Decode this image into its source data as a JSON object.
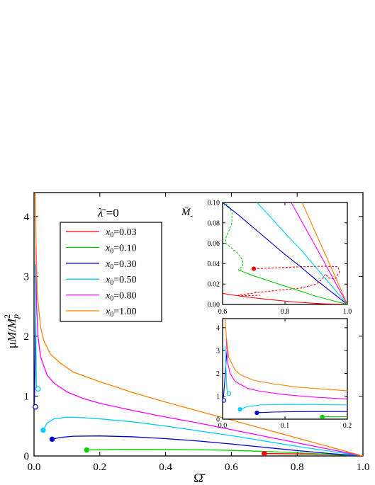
{
  "chart_data": {
    "type": "line",
    "title": "",
    "xlabel": "Ω̄",
    "ylabel": "μM/M_p²",
    "xlim": [
      0.0,
      1.0
    ],
    "ylim": [
      0.0,
      4.4
    ],
    "xticks": [
      "0.0",
      "0.2",
      "0.4",
      "0.6",
      "0.8",
      "1.0"
    ],
    "yticks": [
      "0",
      "1",
      "2",
      "3",
      "4"
    ],
    "annotation": {
      "lambda_prefix": "λ̄",
      "lambda_value": " =0"
    },
    "legend": {
      "placement": "upper-left",
      "var": "x",
      "sub": "0"
    },
    "series": [
      {
        "name": "x0=0.03",
        "label": "=0.03",
        "color": "#ff0000",
        "points": [
          [
            0.7,
            0.04
          ],
          [
            0.75,
            0.038
          ],
          [
            0.8,
            0.035
          ],
          [
            0.85,
            0.03
          ],
          [
            0.9,
            0.022
          ],
          [
            0.95,
            0.012
          ],
          [
            1.0,
            0.0
          ]
        ],
        "start_point": [
          0.7,
          0.04
        ],
        "start_filled": true
      },
      {
        "name": "x0=0.10",
        "label": "=0.10",
        "color": "#00d000",
        "points": [
          [
            0.16,
            0.1
          ],
          [
            0.25,
            0.11
          ],
          [
            0.35,
            0.11
          ],
          [
            0.45,
            0.108
          ],
          [
            0.55,
            0.1
          ],
          [
            0.65,
            0.085
          ],
          [
            0.75,
            0.065
          ],
          [
            0.85,
            0.04
          ],
          [
            0.93,
            0.018
          ],
          [
            1.0,
            0.0
          ]
        ],
        "start_point": [
          0.16,
          0.1
        ],
        "start_filled": true
      },
      {
        "name": "x0=0.30",
        "label": "=0.30",
        "color": "#0000cc",
        "points": [
          [
            0.055,
            0.28
          ],
          [
            0.08,
            0.31
          ],
          [
            0.12,
            0.33
          ],
          [
            0.2,
            0.335
          ],
          [
            0.3,
            0.32
          ],
          [
            0.4,
            0.29
          ],
          [
            0.5,
            0.25
          ],
          [
            0.6,
            0.2
          ],
          [
            0.7,
            0.145
          ],
          [
            0.8,
            0.09
          ],
          [
            0.9,
            0.04
          ],
          [
            1.0,
            0.0
          ]
        ],
        "start_point": [
          0.055,
          0.28
        ],
        "start_filled": true,
        "branch": [
          [
            0.0,
            0.82
          ],
          [
            0.0015,
            1.0
          ],
          [
            0.003,
            1.5
          ],
          [
            0.005,
            2.3
          ],
          [
            0.007,
            3.0
          ]
        ],
        "branch_point": [
          0.0,
          0.82
        ]
      },
      {
        "name": "x0=0.50",
        "label": "=0.50",
        "color": "#00ccff",
        "points": [
          [
            0.028,
            0.43
          ],
          [
            0.04,
            0.55
          ],
          [
            0.06,
            0.62
          ],
          [
            0.1,
            0.65
          ],
          [
            0.15,
            0.64
          ],
          [
            0.2,
            0.62
          ],
          [
            0.3,
            0.57
          ],
          [
            0.4,
            0.5
          ],
          [
            0.5,
            0.42
          ],
          [
            0.6,
            0.34
          ],
          [
            0.7,
            0.25
          ],
          [
            0.8,
            0.16
          ],
          [
            0.9,
            0.08
          ],
          [
            1.0,
            0.0
          ]
        ],
        "start_point": [
          0.028,
          0.43
        ],
        "start_filled": true,
        "branch": [
          [
            0.008,
            1.12
          ],
          [
            0.007,
            1.3
          ],
          [
            0.006,
            1.8
          ],
          [
            0.005,
            2.5
          ],
          [
            0.004,
            3.2
          ]
        ],
        "branch_point": [
          0.008,
          1.12
        ]
      },
      {
        "name": "x0=0.80",
        "label": "=0.80",
        "color": "#ff00ff",
        "points": [
          [
            0.006,
            3.5
          ],
          [
            0.008,
            2.5
          ],
          [
            0.012,
            2.0
          ],
          [
            0.02,
            1.65
          ],
          [
            0.04,
            1.35
          ],
          [
            0.06,
            1.22
          ],
          [
            0.1,
            1.07
          ],
          [
            0.15,
            0.96
          ],
          [
            0.2,
            0.88
          ],
          [
            0.3,
            0.76
          ],
          [
            0.4,
            0.65
          ],
          [
            0.5,
            0.55
          ],
          [
            0.6,
            0.44
          ],
          [
            0.7,
            0.33
          ],
          [
            0.8,
            0.22
          ],
          [
            0.9,
            0.11
          ],
          [
            1.0,
            0.0
          ]
        ]
      },
      {
        "name": "x0=1.00",
        "label": "=1.00",
        "color": "#ff8000",
        "points": [
          [
            0.004,
            4.4
          ],
          [
            0.006,
            3.6
          ],
          [
            0.01,
            2.7
          ],
          [
            0.02,
            2.15
          ],
          [
            0.03,
            1.92
          ],
          [
            0.05,
            1.7
          ],
          [
            0.08,
            1.55
          ],
          [
            0.12,
            1.4
          ],
          [
            0.2,
            1.24
          ],
          [
            0.3,
            1.06
          ],
          [
            0.4,
            0.9
          ],
          [
            0.5,
            0.75
          ],
          [
            0.6,
            0.6
          ],
          [
            0.7,
            0.45
          ],
          [
            0.8,
            0.3
          ],
          [
            0.9,
            0.15
          ],
          [
            1.0,
            0.0
          ]
        ]
      }
    ],
    "inset_top": {
      "label": "M̄",
      "label_sub": "-",
      "xlim": [
        0.6,
        1.0
      ],
      "ylim": [
        0.0,
        0.1
      ],
      "xticks": [
        "0.6",
        "0.8",
        "1.0"
      ],
      "yticks": [
        "0.00",
        "0.02",
        "0.04",
        "0.06",
        "0.08",
        "0.10"
      ],
      "lines": [
        {
          "color": "#ff0000",
          "dash": false,
          "points": [
            [
              0.6,
              0.0108
            ],
            [
              0.65,
              0.0085
            ],
            [
              0.7,
              0.0065
            ],
            [
              0.75,
              0.0048
            ],
            [
              0.8,
              0.0033
            ],
            [
              0.85,
              0.002
            ],
            [
              0.9,
              0.001
            ],
            [
              0.95,
              0.0003
            ],
            [
              1.0,
              0.0
            ]
          ]
        },
        {
          "color": "#ff0000",
          "dash": true,
          "points": [
            [
              0.7,
              0.035
            ],
            [
              0.78,
              0.036
            ],
            [
              0.85,
              0.037
            ],
            [
              0.93,
              0.0375
            ],
            [
              0.97,
              0.037
            ],
            [
              0.975,
              0.032
            ],
            [
              0.96,
              0.025
            ],
            [
              0.94,
              0.026
            ],
            [
              0.93,
              0.03
            ],
            [
              0.92,
              0.025
            ],
            [
              0.9,
              0.02
            ],
            [
              0.85,
              0.016
            ],
            [
              0.78,
              0.014
            ],
            [
              0.72,
              0.012
            ],
            [
              0.67,
              0.01
            ],
            [
              0.65,
              0.009
            ],
            [
              0.67,
              0.0085
            ],
            [
              0.72,
              0.009
            ]
          ]
        },
        {
          "color": "#00d000",
          "dash": true,
          "points": [
            [
              0.6,
              0.1
            ],
            [
              0.61,
              0.099
            ],
            [
              0.62,
              0.096
            ],
            [
              0.63,
              0.09
            ],
            [
              0.63,
              0.08
            ],
            [
              0.62,
              0.072
            ],
            [
              0.61,
              0.065
            ],
            [
              0.61,
              0.06
            ],
            [
              0.63,
              0.055
            ],
            [
              0.65,
              0.05
            ],
            [
              0.665,
              0.043
            ],
            [
              0.665,
              0.038
            ],
            [
              0.655,
              0.035
            ],
            [
              0.65,
              0.034
            ]
          ]
        },
        {
          "color": "#00d000",
          "dash": false,
          "points": [
            [
              0.65,
              0.034
            ],
            [
              0.7,
              0.028
            ],
            [
              0.75,
              0.023
            ],
            [
              0.8,
              0.018
            ],
            [
              0.85,
              0.013
            ],
            [
              0.9,
              0.008
            ],
            [
              0.95,
              0.004
            ],
            [
              1.0,
              0.0
            ]
          ]
        },
        {
          "color": "#0000cc",
          "dash": false,
          "points": [
            [
              0.6,
              0.1
            ],
            [
              0.65,
              0.088
            ],
            [
              0.7,
              0.075
            ],
            [
              0.75,
              0.062
            ],
            [
              0.8,
              0.049
            ],
            [
              0.85,
              0.037
            ],
            [
              0.9,
              0.024
            ],
            [
              0.95,
              0.012
            ],
            [
              1.0,
              0.0
            ]
          ]
        },
        {
          "color": "#00ccff",
          "dash": false,
          "points": [
            [
              0.71,
              0.1
            ],
            [
              0.75,
              0.087
            ],
            [
              0.8,
              0.07
            ],
            [
              0.85,
              0.054
            ],
            [
              0.9,
              0.036
            ],
            [
              0.95,
              0.018
            ],
            [
              1.0,
              0.0
            ]
          ]
        },
        {
          "color": "#ff00ff",
          "dash": false,
          "points": [
            [
              0.82,
              0.1
            ],
            [
              0.86,
              0.078
            ],
            [
              0.9,
              0.056
            ],
            [
              0.95,
              0.028
            ],
            [
              1.0,
              0.0
            ]
          ]
        },
        {
          "color": "#ff8000",
          "dash": false,
          "points": [
            [
              0.855,
              0.1
            ],
            [
              0.9,
              0.069
            ],
            [
              0.95,
              0.035
            ],
            [
              1.0,
              0.0
            ]
          ]
        }
      ],
      "markers": [
        {
          "x": 0.7,
          "y": 0.035,
          "color": "#ff0000",
          "filled": true
        }
      ]
    },
    "inset_bottom": {
      "xlim": [
        0.0,
        0.2
      ],
      "ylim": [
        0.0,
        4.4
      ],
      "xticks": [
        "0.0",
        "0.1",
        "0.2"
      ],
      "yticks": [
        "0",
        "1",
        "2",
        "3",
        "4"
      ],
      "lines": [
        {
          "color": "#00d000",
          "points": [
            [
              0.16,
              0.1
            ],
            [
              0.17,
              0.105
            ],
            [
              0.2,
              0.108
            ]
          ]
        },
        {
          "color": "#0000cc",
          "points": [
            [
              0.055,
              0.28
            ],
            [
              0.08,
              0.31
            ],
            [
              0.12,
              0.33
            ],
            [
              0.2,
              0.335
            ]
          ]
        },
        {
          "color": "#0000cc",
          "points": [
            [
              0.0,
              0.82
            ],
            [
              0.0015,
              1.0
            ],
            [
              0.003,
              1.5
            ],
            [
              0.005,
              2.3
            ],
            [
              0.007,
              3.0
            ]
          ]
        },
        {
          "color": "#00ccff",
          "points": [
            [
              0.028,
              0.43
            ],
            [
              0.04,
              0.55
            ],
            [
              0.06,
              0.62
            ],
            [
              0.1,
              0.65
            ],
            [
              0.15,
              0.64
            ],
            [
              0.2,
              0.62
            ]
          ]
        },
        {
          "color": "#00ccff",
          "points": [
            [
              0.008,
              1.12
            ],
            [
              0.007,
              1.3
            ],
            [
              0.006,
              1.8
            ],
            [
              0.005,
              2.5
            ],
            [
              0.004,
              3.2
            ]
          ]
        },
        {
          "color": "#ff00ff",
          "points": [
            [
              0.006,
              3.5
            ],
            [
              0.008,
              2.5
            ],
            [
              0.012,
              2.0
            ],
            [
              0.02,
              1.65
            ],
            [
              0.04,
              1.35
            ],
            [
              0.06,
              1.22
            ],
            [
              0.1,
              1.07
            ],
            [
              0.15,
              0.96
            ],
            [
              0.2,
              0.88
            ]
          ]
        },
        {
          "color": "#ff8000",
          "points": [
            [
              0.004,
              4.4
            ],
            [
              0.006,
              3.6
            ],
            [
              0.01,
              2.7
            ],
            [
              0.02,
              2.15
            ],
            [
              0.03,
              1.92
            ],
            [
              0.05,
              1.7
            ],
            [
              0.08,
              1.55
            ],
            [
              0.12,
              1.4
            ],
            [
              0.2,
              1.24
            ]
          ]
        }
      ],
      "markers": [
        {
          "x": 0.16,
          "y": 0.1,
          "color": "#00d000",
          "filled": true
        },
        {
          "x": 0.055,
          "y": 0.28,
          "color": "#0000cc",
          "filled": true
        },
        {
          "x": 0.0,
          "y": 0.82,
          "color": "#0000cc",
          "filled": false
        },
        {
          "x": 0.028,
          "y": 0.43,
          "color": "#00ccff",
          "filled": true
        },
        {
          "x": 0.008,
          "y": 1.12,
          "color": "#00ccff",
          "filled": false
        }
      ]
    }
  }
}
